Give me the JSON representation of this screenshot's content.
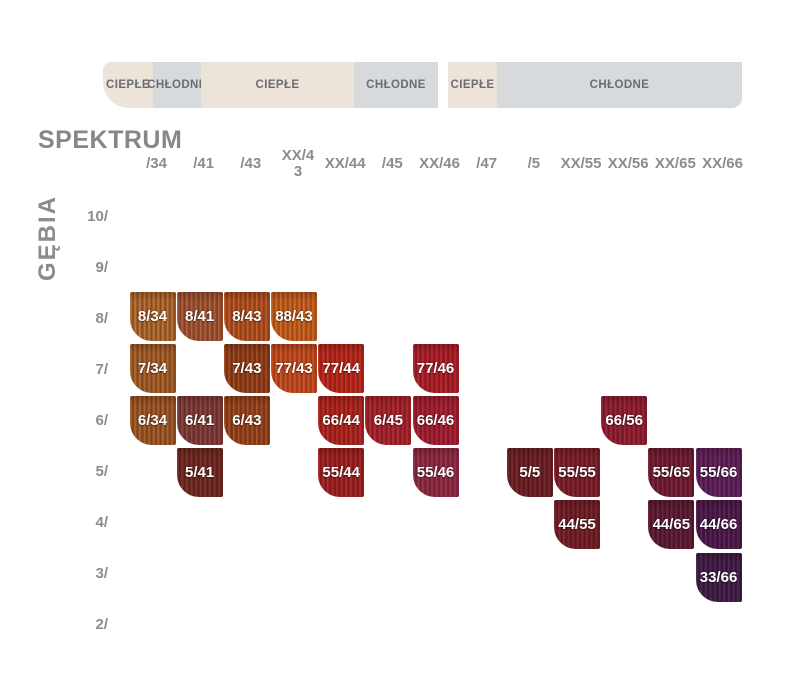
{
  "chart_data": {
    "type": "table",
    "title": "SPEKTRUM",
    "y_axis_label": "GĘBIA",
    "tone_band": {
      "warm_color": "#ede4d9",
      "cool_color": "#d6dadd",
      "text_color": "#6b6d70",
      "segments_left": [
        {
          "label": "CIEPŁE",
          "tone": "warm"
        },
        {
          "label": "CHŁODNE",
          "tone": "cool"
        },
        {
          "label": "CIEPŁE",
          "tone": "warm"
        },
        {
          "label": "CHŁODNE",
          "tone": "cool"
        }
      ],
      "segments_right": [
        {
          "label": "CIEPŁE",
          "tone": "warm"
        },
        {
          "label": "CHŁODNE",
          "tone": "cool"
        }
      ]
    },
    "x_categories": [
      "/34",
      "/41",
      "/43",
      "XX/43",
      "XX/44",
      "/45",
      "XX/46",
      "/47",
      "/5",
      "XX/55",
      "XX/56",
      "XX/65",
      "XX/66"
    ],
    "y_categories": [
      "10/",
      "9/",
      "8/",
      "7/",
      "6/",
      "5/",
      "4/",
      "3/",
      "2/"
    ],
    "cells": [
      {
        "code": "8/34",
        "row": "8/",
        "col": "/34",
        "base": "#a8652c",
        "light": "#c28448",
        "dark": "#86491c"
      },
      {
        "code": "8/41",
        "row": "8/",
        "col": "/41",
        "base": "#9d5233",
        "light": "#b76c44",
        "dark": "#7c3d25"
      },
      {
        "code": "8/43",
        "row": "8/",
        "col": "/43",
        "base": "#ad4f21",
        "light": "#c76930",
        "dark": "#8a3a16"
      },
      {
        "code": "88/43",
        "row": "8/",
        "col": "XX/43",
        "base": "#bd5c1e",
        "light": "#d6772e",
        "dark": "#9a4614"
      },
      {
        "code": "7/34",
        "row": "7/",
        "col": "/34",
        "base": "#9e5a27",
        "light": "#b9753e",
        "dark": "#7d441b"
      },
      {
        "code": "7/43",
        "row": "7/",
        "col": "/43",
        "base": "#903e1b",
        "light": "#aa5628",
        "dark": "#702e12"
      },
      {
        "code": "77/43",
        "row": "7/",
        "col": "XX/43",
        "base": "#bc4a20",
        "light": "#d4602e",
        "dark": "#983816"
      },
      {
        "code": "77/44",
        "row": "7/",
        "col": "XX/44",
        "base": "#b4271d",
        "light": "#ca3e2a",
        "dark": "#921b13"
      },
      {
        "code": "77/46",
        "row": "7/",
        "col": "XX/46",
        "base": "#a62029",
        "light": "#bd3338",
        "dark": "#87151f"
      },
      {
        "code": "6/34",
        "row": "6/",
        "col": "/34",
        "base": "#985425",
        "light": "#b26e3b",
        "dark": "#783f19"
      },
      {
        "code": "6/41",
        "row": "6/",
        "col": "/41",
        "base": "#7d3b38",
        "light": "#955049",
        "dark": "#622b29"
      },
      {
        "code": "6/43",
        "row": "6/",
        "col": "/43",
        "base": "#93431e",
        "light": "#ad5a29",
        "dark": "#743113"
      },
      {
        "code": "66/44",
        "row": "6/",
        "col": "XX/44",
        "base": "#a82521",
        "light": "#bf3a2e",
        "dark": "#881913"
      },
      {
        "code": "6/45",
        "row": "6/",
        "col": "/45",
        "base": "#a2242a",
        "light": "#b93741",
        "dark": "#821920"
      },
      {
        "code": "66/46",
        "row": "6/",
        "col": "XX/46",
        "base": "#9e1f30",
        "light": "#b53042",
        "dark": "#801525"
      },
      {
        "code": "66/56",
        "row": "6/",
        "col": "XX/56",
        "base": "#8c2030",
        "light": "#a23042",
        "dark": "#701625"
      },
      {
        "code": "5/41",
        "row": "5/",
        "col": "/41",
        "base": "#6e2a24",
        "light": "#853c31",
        "dark": "#561e19"
      },
      {
        "code": "55/44",
        "row": "5/",
        "col": "XX/44",
        "base": "#9b2122",
        "light": "#b23531",
        "dark": "#7c1717"
      },
      {
        "code": "55/46",
        "row": "5/",
        "col": "XX/46",
        "base": "#8c2a42",
        "light": "#a23c54",
        "dark": "#701f33"
      },
      {
        "code": "5/5",
        "row": "5/",
        "col": "/5",
        "base": "#6b2126",
        "light": "#823335",
        "dark": "#53171b"
      },
      {
        "code": "55/55",
        "row": "5/",
        "col": "XX/55",
        "base": "#7a1f2b",
        "light": "#91303b",
        "dark": "#60161f"
      },
      {
        "code": "55/65",
        "row": "5/",
        "col": "XX/65",
        "base": "#6f1d33",
        "light": "#862e45",
        "dark": "#571425"
      },
      {
        "code": "55/66",
        "row": "5/",
        "col": "XX/66",
        "base": "#5e2158",
        "light": "#76326c",
        "dark": "#471745"
      },
      {
        "code": "44/55",
        "row": "4/",
        "col": "XX/55",
        "base": "#701f28",
        "light": "#853036",
        "dark": "#58161d"
      },
      {
        "code": "44/65",
        "row": "4/",
        "col": "XX/65",
        "base": "#5c1c36",
        "light": "#722c46",
        "dark": "#461327"
      },
      {
        "code": "44/66",
        "row": "4/",
        "col": "XX/66",
        "base": "#4c1c4a",
        "light": "#622c5e",
        "dark": "#381236"
      },
      {
        "code": "33/66",
        "row": "3/",
        "col": "XX/66",
        "base": "#421f47",
        "light": "#582e59",
        "dark": "#301434"
      }
    ]
  }
}
